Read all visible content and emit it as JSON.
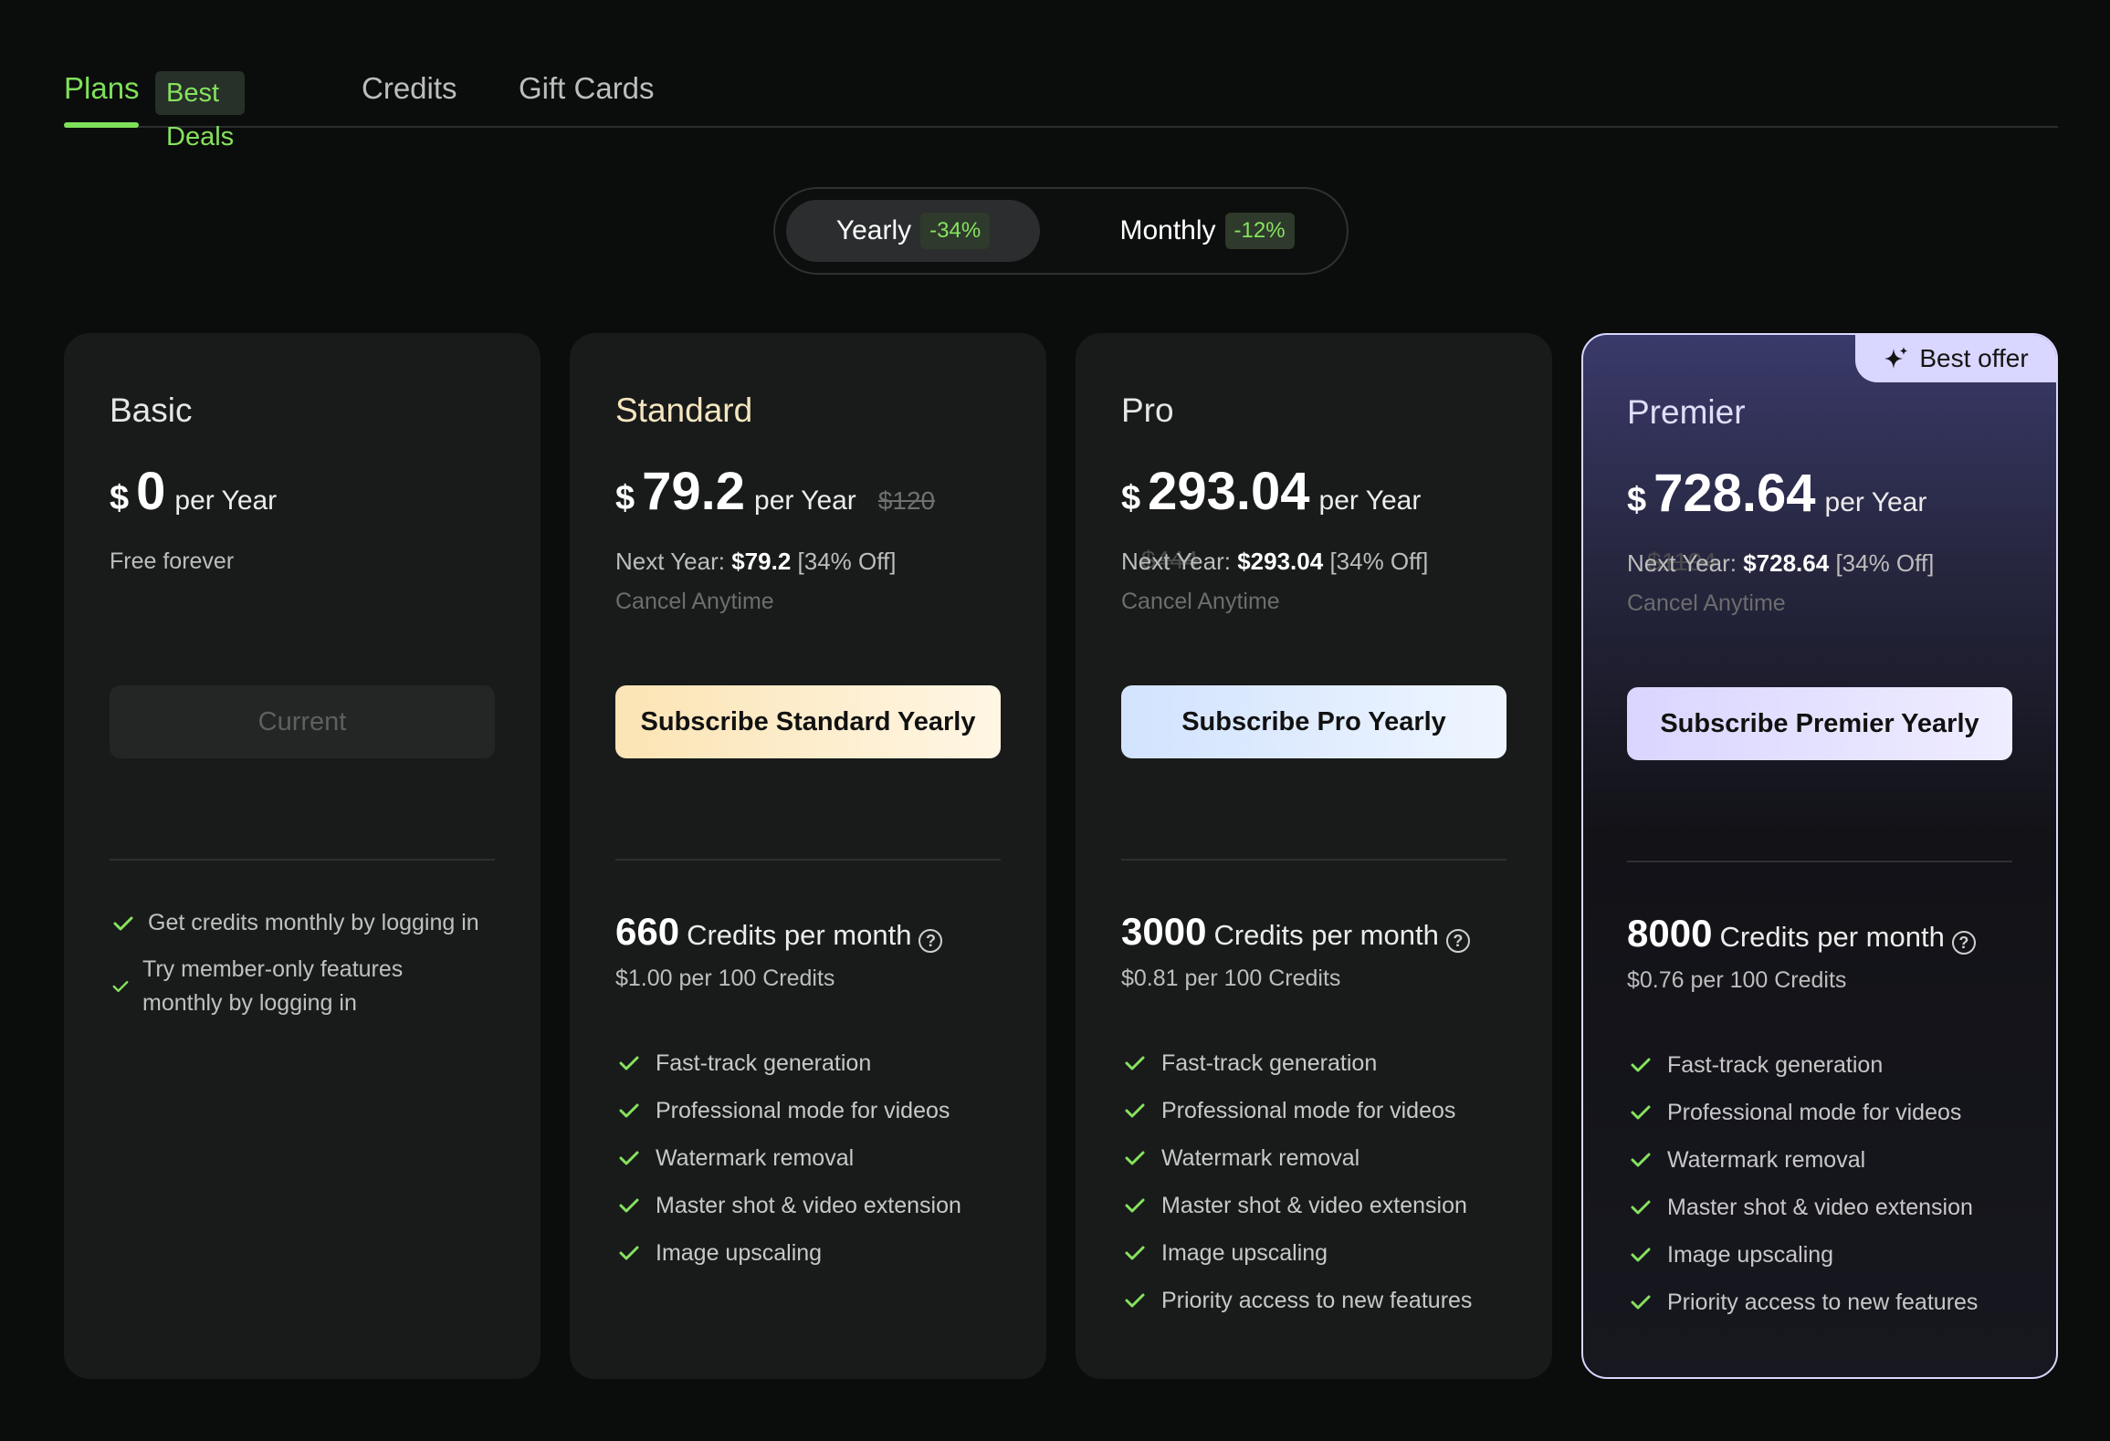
{
  "tabs": {
    "plans": "Plans",
    "plans_badge": "Best Deals",
    "credits": "Credits",
    "gift_cards": "Gift Cards"
  },
  "billing_toggle": {
    "yearly": {
      "label": "Yearly",
      "badge": "-34%"
    },
    "monthly": {
      "label": "Monthly",
      "badge": "-12%"
    },
    "selected": "Yearly"
  },
  "cards": [
    {
      "name": "Basic",
      "currency": "$",
      "price": "0",
      "period": "per Year",
      "subtitle": "Free forever",
      "button": "Current",
      "features": [
        "Get credits monthly by logging in",
        "Try member-only features monthly by logging in"
      ]
    },
    {
      "name": "Standard",
      "currency": "$",
      "price": "79.2",
      "period": "per Year",
      "old_price": "$120",
      "next_year_label": "Next Year:",
      "next_year_value": "$79.2",
      "next_year_discount": "[34% Off]",
      "cancel": "Cancel Anytime",
      "button": "Subscribe Standard Yearly",
      "credits": "660",
      "credits_label": "Credits per month",
      "rate": "$1.00 per 100 Credits",
      "features": [
        "Fast-track generation",
        "Professional mode for videos",
        "Watermark removal",
        "Master shot & video extension",
        "Image upscaling"
      ]
    },
    {
      "name": "Pro",
      "currency": "$",
      "price": "293.04",
      "period": "per Year",
      "old_price": "$444",
      "next_year_label": "Next Year:",
      "next_year_value": "$293.04",
      "next_year_discount": "[34% Off]",
      "cancel": "Cancel Anytime",
      "button": "Subscribe Pro Yearly",
      "credits": "3000",
      "credits_label": "Credits per month",
      "rate": "$0.81 per 100 Credits",
      "features": [
        "Fast-track generation",
        "Professional mode for videos",
        "Watermark removal",
        "Master shot & video extension",
        "Image upscaling",
        "Priority access to new features"
      ]
    },
    {
      "name": "Premier",
      "currency": "$",
      "price": "728.64",
      "period": "per Year",
      "old_price": "$1104",
      "next_year_label": "Next Year:",
      "next_year_value": "$728.64",
      "next_year_discount": "[34% Off]",
      "cancel": "Cancel Anytime",
      "button": "Subscribe Premier Yearly",
      "badge": "Best offer",
      "credits": "8000",
      "credits_label": "Credits per month",
      "rate": "$0.76 per 100 Credits",
      "features": [
        "Fast-track generation",
        "Professional mode for videos",
        "Watermark removal",
        "Master shot & video extension",
        "Image upscaling",
        "Priority access to new features"
      ]
    }
  ],
  "icons": {
    "check": "check-icon",
    "help": "help-circle-icon",
    "sparkle": "sparkle-icon",
    "help_glyph": "?"
  },
  "colors": {
    "accent_green": "#7ee05a",
    "background": "#0b0c0c",
    "card": "#191b1b",
    "premier_border": "#d9d6ff"
  }
}
